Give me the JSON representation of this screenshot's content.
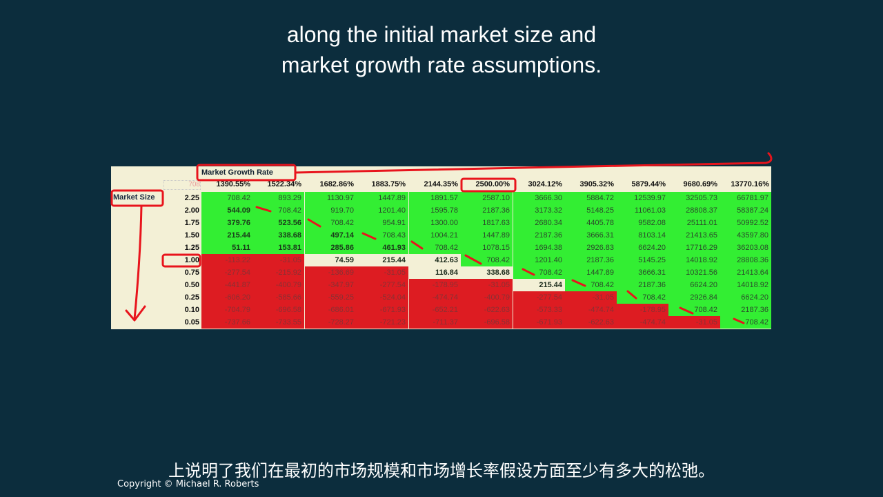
{
  "caption_en": {
    "line1": "along the initial market size and",
    "line2": "market growth rate assumptions."
  },
  "table": {
    "growth_label": "Market Growth Rate",
    "size_label": "Market Size",
    "corner_value": "708",
    "growth_rates": [
      "1390.55%",
      "1522.34%",
      "1682.86%",
      "1883.75%",
      "2144.35%",
      "2500.00%",
      "3024.12%",
      "3905.32%",
      "5879.44%",
      "9680.69%",
      "13770.16%"
    ],
    "market_sizes": [
      "2.25",
      "2.00",
      "1.75",
      "1.50",
      "1.25",
      "1.00",
      "0.75",
      "0.50",
      "0.25",
      "0.10",
      "0.05"
    ],
    "rows": [
      [
        "708.42",
        "893.29",
        "1130.97",
        "1447.89",
        "1891.57",
        "2587.10",
        "3666.30",
        "5884.72",
        "12539.97",
        "32505.73",
        "66781.97"
      ],
      [
        "544.09",
        "708.42",
        "919.70",
        "1201.40",
        "1595.78",
        "2187.36",
        "3173.32",
        "5148.25",
        "11061.03",
        "28808.37",
        "58387.24"
      ],
      [
        "379.76",
        "523.56",
        "708.42",
        "954.91",
        "1300.00",
        "1817.63",
        "2680.34",
        "4405.78",
        "9582.08",
        "25111.01",
        "50992.52"
      ],
      [
        "215.44",
        "338.68",
        "497.14",
        "708.43",
        "1004.21",
        "1447.89",
        "2187.36",
        "3666.31",
        "8103.14",
        "21413.65",
        "43597.80"
      ],
      [
        "51.11",
        "153.81",
        "285.86",
        "461.93",
        "708.42",
        "1078.15",
        "1694.38",
        "2926.83",
        "6624.20",
        "17716.29",
        "36203.08"
      ],
      [
        "-113.22",
        "-31.05",
        "74.59",
        "215.44",
        "412.63",
        "708.42",
        "1201.40",
        "2187.36",
        "5145.25",
        "14018.92",
        "28808.36"
      ],
      [
        "-277.54",
        "-215.92",
        "-136.69",
        "-31.05",
        "116.84",
        "338.68",
        "708.42",
        "1447.89",
        "3666.31",
        "10321.56",
        "21413.64"
      ],
      [
        "-441.87",
        "-400.79",
        "-347.97",
        "-277.54",
        "-178.95",
        "-31.05",
        "215.44",
        "708.42",
        "2187.36",
        "6624.20",
        "14018.92"
      ],
      [
        "-606.20",
        "-585.66",
        "-559.25",
        "-524.04",
        "-474.74",
        "-400.79",
        "-277.54",
        "-31.05",
        "708.42",
        "2926.84",
        "6624.20"
      ],
      [
        "-704.79",
        "-696.58",
        "-686.01",
        "-671.93",
        "-652.21",
        "-622.63",
        "-573.33",
        "-474.74",
        "-178.95",
        "708.42",
        "2187.36"
      ],
      [
        "-737.66",
        "-733.55",
        "-728.27",
        "-721.23",
        "-711.37",
        "-696.58",
        "-671.93",
        "-622.63",
        "-474.74",
        "-31.05",
        "708.42"
      ]
    ]
  },
  "caption_zh": "上说明了我们在最初的市场规模和市场增长率假设方面至少有多大的松弛。",
  "copyright": "Copyright © Michael R. Roberts",
  "colors": {
    "background": "#0c2d3d",
    "green": "#33ee33",
    "red": "#dd1c22",
    "cream": "#f3f0d6",
    "annotation": "#e8141c"
  }
}
